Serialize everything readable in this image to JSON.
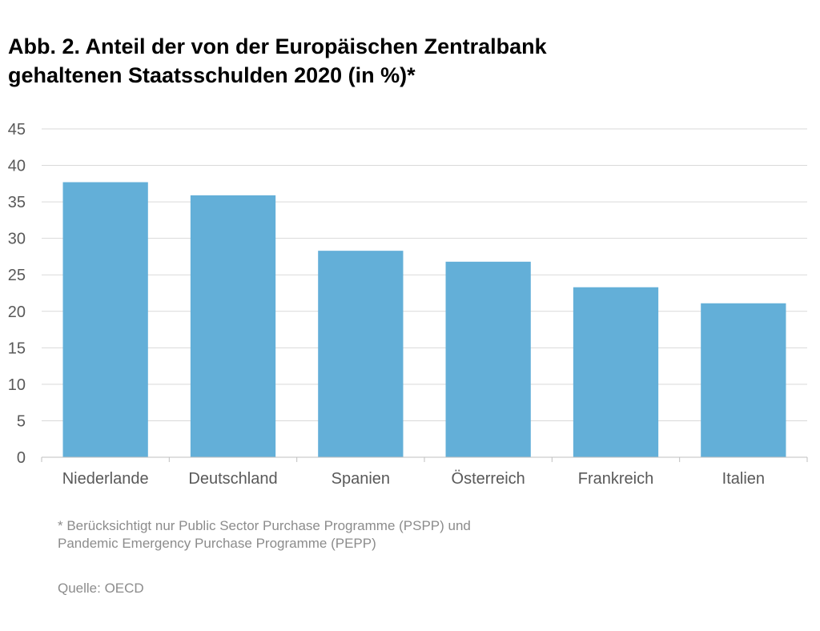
{
  "title_lines": [
    "Abb. 2. Anteil der von der Europäischen Zentralbank",
    "gehaltenen Staatsschulden 2020 (in %)*"
  ],
  "footnote_lines": [
    "* Berücksichtigt nur Public Sector Purchase Programme (PSPP) und",
    "Pandemic Emergency Purchase Programme (PEPP)"
  ],
  "source": "Quelle: OECD",
  "colors": {
    "bar": "#63afd8",
    "grid": "#d9d9d9",
    "axis": "#bfbfbf",
    "text": "#595959"
  },
  "chart_data": {
    "type": "bar",
    "categories": [
      "Niederlande",
      "Deutschland",
      "Spanien",
      "Österreich",
      "Frankreich",
      "Italien"
    ],
    "values": [
      37.7,
      35.9,
      28.3,
      26.8,
      23.3,
      21.1
    ],
    "ylim": [
      0,
      45
    ],
    "yticks": [
      0,
      5,
      10,
      15,
      20,
      25,
      30,
      35,
      40,
      45
    ],
    "grid": true,
    "legend": false
  }
}
